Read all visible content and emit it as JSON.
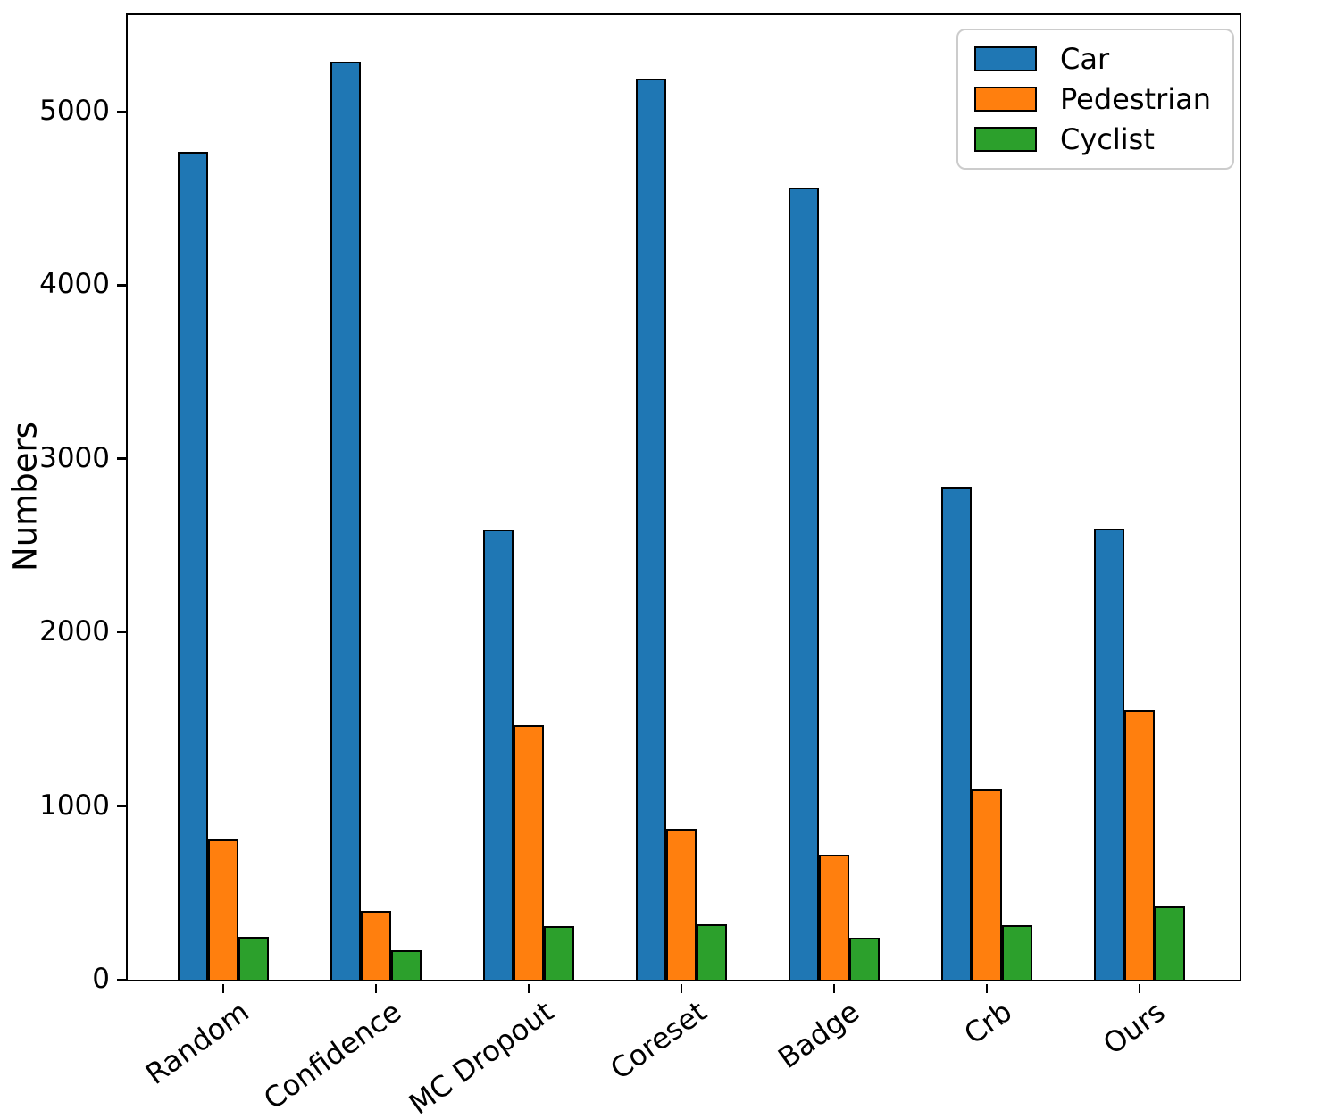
{
  "chart_data": {
    "type": "bar",
    "title": "",
    "xlabel": "",
    "ylabel": "Numbers",
    "categories": [
      "Random",
      "Confidence",
      "MC Dropout",
      "Coreset",
      "Badge",
      "Crb",
      "Ours"
    ],
    "series": [
      {
        "name": "Car",
        "color": "#1f77b4",
        "values": [
          4770,
          5290,
          2590,
          5190,
          4560,
          2840,
          2600
        ]
      },
      {
        "name": "Pedestrian",
        "color": "#ff7f0e",
        "values": [
          810,
          395,
          1465,
          870,
          720,
          1095,
          1555
        ]
      },
      {
        "name": "Cyclist",
        "color": "#2ca02c",
        "values": [
          245,
          170,
          310,
          320,
          240,
          315,
          420
        ]
      }
    ],
    "yticks": [
      0,
      1000,
      2000,
      3000,
      4000,
      5000
    ],
    "ylim": [
      0,
      5555
    ],
    "grid": false,
    "legend_position": "upper right",
    "bar_edge_color": "#000000",
    "x_tick_rotation_deg": 36
  }
}
